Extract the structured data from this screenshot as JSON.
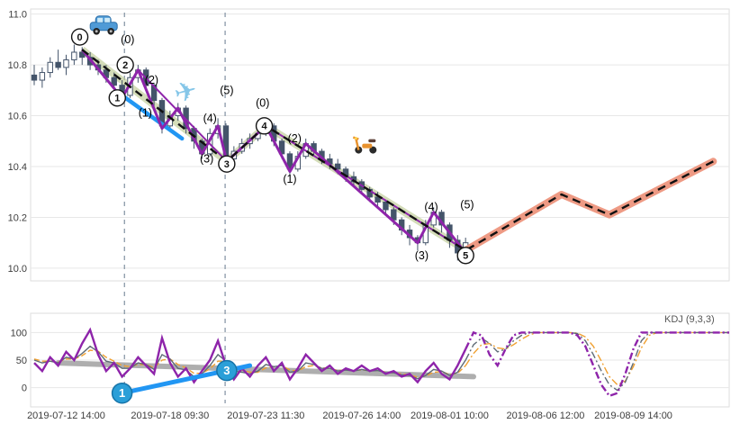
{
  "kdj_label": "KDJ (9,3,3)",
  "colors": {
    "grid": "#e7e7e7",
    "border": "#dedede",
    "axis_text": "#3d3d3d",
    "candle": "#44546a",
    "candle_up_fill": "#ffffff",
    "wave_purple": "#8e24aa",
    "trend_band": "#b7c68b",
    "projection": "#ec8f77",
    "dashed": "#111111",
    "blue": "#2196f3",
    "vline": "#8a99a8",
    "kdj_k": "#5f6b76",
    "kdj_d": "#f0a030",
    "kdj_j": "#8e24aa",
    "gray_trend": "#a0a0a0",
    "blue_marker": "#2b9fd8",
    "blue_marker_stroke": "#1673a8"
  },
  "chart_data": {
    "type": "candlestick",
    "title": "",
    "legend": [
      "KDJ (9,3,3)"
    ],
    "x_ticks": {
      "slots": [
        4,
        17,
        29,
        41,
        52,
        64,
        75
      ],
      "labels": [
        "2019-07-12 14:00",
        "2019-07-18 09:30",
        "2019-07-23 11:30",
        "2019-07-26 14:00",
        "2019-08-01 10:00",
        "2019-08-06 12:00",
        "2019-08-09 14:00"
      ]
    },
    "price_axis": {
      "range": [
        9.95,
        11.02
      ],
      "ticks": [
        11.0,
        10.8,
        10.6,
        10.4,
        10.2,
        10.0
      ],
      "tick_labels": [
        "11.0",
        "10.8",
        "10.6",
        "10.4",
        "10.2",
        "10.0"
      ]
    },
    "kdj_axis": {
      "range": [
        -35,
        135
      ],
      "ticks": [
        100,
        50,
        0
      ],
      "tick_labels": [
        "100",
        "50",
        "0"
      ]
    },
    "candles": [
      [
        10.76,
        10.8,
        10.72,
        10.74
      ],
      [
        10.74,
        10.79,
        10.71,
        10.77
      ],
      [
        10.77,
        10.83,
        10.75,
        10.81
      ],
      [
        10.81,
        10.86,
        10.78,
        10.79
      ],
      [
        10.79,
        10.84,
        10.76,
        10.82
      ],
      [
        10.82,
        10.88,
        10.8,
        10.85
      ],
      [
        10.85,
        10.87,
        10.8,
        10.83
      ],
      [
        10.83,
        10.85,
        10.78,
        10.8
      ],
      [
        10.8,
        10.82,
        10.76,
        10.78
      ],
      [
        10.78,
        10.8,
        10.73,
        10.75
      ],
      [
        10.75,
        10.77,
        10.7,
        10.72
      ],
      [
        10.72,
        10.74,
        10.66,
        10.68
      ],
      [
        10.68,
        10.77,
        10.67,
        10.75
      ],
      [
        10.75,
        10.8,
        10.73,
        10.78
      ],
      [
        10.78,
        10.79,
        10.7,
        10.72
      ],
      [
        10.72,
        10.73,
        10.63,
        10.66
      ],
      [
        10.66,
        10.67,
        10.53,
        10.56
      ],
      [
        10.56,
        10.62,
        10.55,
        10.6
      ],
      [
        10.6,
        10.65,
        10.58,
        10.63
      ],
      [
        10.63,
        10.64,
        10.53,
        10.55
      ],
      [
        10.55,
        10.56,
        10.47,
        10.5
      ],
      [
        10.5,
        10.51,
        10.43,
        10.45
      ],
      [
        10.45,
        10.55,
        10.44,
        10.53
      ],
      [
        10.53,
        10.59,
        10.51,
        10.56
      ],
      [
        10.56,
        10.57,
        10.41,
        10.43
      ],
      [
        10.43,
        10.48,
        10.42,
        10.46
      ],
      [
        10.46,
        10.51,
        10.45,
        10.49
      ],
      [
        10.49,
        10.53,
        10.47,
        10.51
      ],
      [
        10.51,
        10.55,
        10.5,
        10.53
      ],
      [
        10.53,
        10.58,
        10.52,
        10.56
      ],
      [
        10.56,
        10.57,
        10.48,
        10.5
      ],
      [
        10.5,
        10.51,
        10.43,
        10.45
      ],
      [
        10.45,
        10.46,
        10.36,
        10.39
      ],
      [
        10.39,
        10.46,
        10.38,
        10.44
      ],
      [
        10.44,
        10.51,
        10.43,
        10.49
      ],
      [
        10.49,
        10.5,
        10.44,
        10.46
      ],
      [
        10.46,
        10.47,
        10.41,
        10.43
      ],
      [
        10.43,
        10.45,
        10.39,
        10.41
      ],
      [
        10.41,
        10.43,
        10.37,
        10.39
      ],
      [
        10.39,
        10.4,
        10.34,
        10.36
      ],
      [
        10.36,
        10.38,
        10.32,
        10.34
      ],
      [
        10.34,
        10.35,
        10.29,
        10.31
      ],
      [
        10.31,
        10.32,
        10.26,
        10.28
      ],
      [
        10.28,
        10.3,
        10.24,
        10.26
      ],
      [
        10.26,
        10.27,
        10.21,
        10.23
      ],
      [
        10.23,
        10.24,
        10.17,
        10.19
      ],
      [
        10.19,
        10.2,
        10.13,
        10.15
      ],
      [
        10.15,
        10.17,
        10.09,
        10.12
      ],
      [
        10.12,
        10.13,
        10.07,
        10.1
      ],
      [
        10.1,
        10.19,
        10.09,
        10.17
      ],
      [
        10.17,
        10.24,
        10.16,
        10.22
      ],
      [
        10.22,
        10.23,
        10.14,
        10.17
      ],
      [
        10.17,
        10.18,
        10.08,
        10.11
      ],
      [
        10.11,
        10.13,
        10.03,
        10.06
      ],
      [
        10.06,
        10.12,
        10.05,
        10.1
      ]
    ],
    "vlines": [
      11.3,
      23.9
    ],
    "overlays": {
      "trend_band": {
        "points": [
          [
            6,
            10.86
          ],
          [
            24.1,
            10.42
          ],
          [
            29,
            10.56
          ],
          [
            54,
            10.07
          ]
        ]
      },
      "projection": {
        "points": [
          [
            54,
            10.07
          ],
          [
            66,
            10.29
          ],
          [
            72,
            10.21
          ],
          [
            85,
            10.42
          ]
        ]
      },
      "dashed_path": {
        "points": [
          [
            6,
            10.86
          ],
          [
            24.1,
            10.42
          ],
          [
            29,
            10.56
          ],
          [
            54,
            10.07
          ],
          [
            66,
            10.29
          ],
          [
            72,
            10.21
          ],
          [
            85,
            10.42
          ]
        ]
      },
      "wave_zigzag": {
        "points": [
          [
            6,
            10.86
          ],
          [
            11,
            10.67
          ],
          [
            13,
            10.78
          ],
          [
            16,
            10.55
          ],
          [
            18,
            10.63
          ],
          [
            21,
            10.45
          ],
          [
            23,
            10.56
          ],
          [
            24.1,
            10.42
          ],
          [
            29,
            10.56
          ],
          [
            32,
            10.38
          ],
          [
            34,
            10.49
          ],
          [
            48,
            10.1
          ],
          [
            50,
            10.22
          ],
          [
            54,
            10.06
          ]
        ]
      },
      "wave_lines": [
        [
          [
            13,
            10.78
          ],
          [
            24.1,
            10.42
          ]
        ],
        [
          [
            29,
            10.56
          ],
          [
            54,
            10.07
          ]
        ]
      ],
      "blue_segment": {
        "points": [
          [
            11,
            10.68
          ],
          [
            18.5,
            10.51
          ]
        ]
      }
    },
    "wave_circles": [
      {
        "label": "0",
        "slot": 5.7,
        "price": 10.91
      },
      {
        "label": "2",
        "slot": 11.4,
        "price": 10.8
      },
      {
        "label": "1",
        "slot": 10.4,
        "price": 10.67
      },
      {
        "label": "3",
        "slot": 24.1,
        "price": 10.41
      },
      {
        "label": "4",
        "slot": 28.8,
        "price": 10.56
      },
      {
        "label": "5",
        "slot": 54.0,
        "price": 10.05
      }
    ],
    "wave_labels": [
      {
        "text": "(0)",
        "slot": 11.7,
        "price": 10.9
      },
      {
        "text": "(2)",
        "slot": 14.7,
        "price": 10.74
      },
      {
        "text": "(1)",
        "slot": 13.9,
        "price": 10.61
      },
      {
        "text": "(3)",
        "slot": 21.6,
        "price": 10.43
      },
      {
        "text": "(4)",
        "slot": 22.0,
        "price": 10.59
      },
      {
        "text": "(5)",
        "slot": 24.1,
        "price": 10.7
      },
      {
        "text": "(0)",
        "slot": 28.6,
        "price": 10.65
      },
      {
        "text": "(2)",
        "slot": 32.6,
        "price": 10.51
      },
      {
        "text": "(1)",
        "slot": 32.0,
        "price": 10.35
      },
      {
        "text": "(3)",
        "slot": 48.5,
        "price": 10.05
      },
      {
        "text": "(4)",
        "slot": 49.7,
        "price": 10.24
      },
      {
        "text": "(5)",
        "slot": 54.2,
        "price": 10.25
      }
    ],
    "icons": [
      {
        "name": "car-icon",
        "slot": 8.7,
        "price": 10.95
      },
      {
        "name": "airplane-icon",
        "slot": 19.0,
        "price": 10.69
      },
      {
        "name": "scooter-icon",
        "slot": 41.5,
        "price": 10.49
      }
    ],
    "kdj": {
      "solid_until": 54,
      "j": [
        45,
        30,
        55,
        40,
        65,
        50,
        80,
        105,
        60,
        30,
        45,
        20,
        35,
        55,
        40,
        25,
        90,
        45,
        20,
        35,
        10,
        30,
        50,
        85,
        40,
        15,
        35,
        20,
        40,
        55,
        30,
        45,
        15,
        35,
        60,
        45,
        30,
        40,
        25,
        35,
        30,
        40,
        30,
        35,
        25,
        30,
        20,
        25,
        10,
        30,
        45,
        25,
        15,
        40,
        70,
        100,
        95,
        60,
        40,
        70,
        95,
        100,
        100,
        100,
        100,
        100,
        100,
        100,
        95,
        75,
        40,
        5,
        -15,
        -10,
        25,
        70,
        100,
        100,
        100,
        100,
        100,
        100,
        100,
        100,
        100,
        100,
        100,
        100
      ],
      "k": [
        50,
        45,
        48,
        45,
        55,
        52,
        62,
        75,
        65,
        48,
        45,
        35,
        35,
        45,
        42,
        33,
        60,
        52,
        35,
        32,
        20,
        25,
        40,
        60,
        48,
        30,
        28,
        25,
        30,
        42,
        38,
        40,
        28,
        30,
        45,
        42,
        35,
        35,
        30,
        32,
        30,
        33,
        30,
        31,
        27,
        27,
        23,
        22,
        16,
        22,
        33,
        30,
        22,
        28,
        50,
        78,
        90,
        80,
        65,
        70,
        85,
        95,
        100,
        100,
        100,
        100,
        100,
        100,
        98,
        85,
        60,
        30,
        5,
        -5,
        10,
        45,
        85,
        100,
        100,
        100,
        100,
        100,
        100,
        100,
        100,
        100,
        100,
        100
      ],
      "d": [
        52,
        48,
        48,
        46,
        52,
        52,
        58,
        68,
        66,
        55,
        48,
        40,
        38,
        42,
        42,
        36,
        50,
        52,
        42,
        36,
        26,
        26,
        34,
        48,
        48,
        38,
        32,
        28,
        28,
        36,
        38,
        40,
        32,
        30,
        38,
        40,
        36,
        35,
        31,
        32,
        31,
        32,
        31,
        31,
        28,
        27,
        25,
        23,
        19,
        21,
        28,
        29,
        24,
        26,
        40,
        62,
        78,
        80,
        72,
        70,
        78,
        88,
        96,
        100,
        100,
        100,
        100,
        100,
        99,
        92,
        75,
        48,
        20,
        5,
        12,
        38,
        72,
        95,
        100,
        100,
        100,
        100,
        100,
        100,
        100,
        100,
        100,
        100
      ]
    },
    "kdj_overlays": {
      "gray_trend": [
        [
          3,
          45
        ],
        [
          55,
          20
        ]
      ],
      "blue_line": [
        [
          11,
          -10
        ],
        [
          27,
          40
        ]
      ],
      "blue_circles": [
        {
          "label": "1",
          "slot": 11,
          "value": -10
        },
        {
          "label": "3",
          "slot": 24.1,
          "value": 31
        }
      ]
    }
  }
}
